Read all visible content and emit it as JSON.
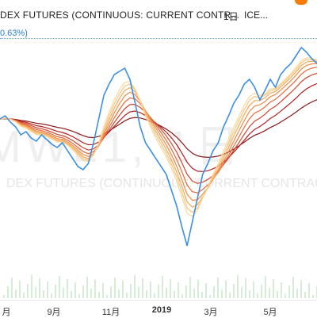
{
  "header": {
    "symbol": "DEX FUTURES (CONTINUOUS: CURRENT CONTR...",
    "separator": "·",
    "interval": "1日",
    "exchange": "ICE...",
    "change_pct": "0.63%)",
    "marker_color": "#f57c00"
  },
  "watermark": {
    "main": "MWL1, 1日",
    "sub": "DEX FUTURES (CONTINUOUS: CURRENT CONTRACT IN F"
  },
  "xaxis": {
    "ticks": [
      "月",
      "9月",
      "11月",
      "2019",
      "3月",
      "5月"
    ]
  },
  "colors": {
    "price": "#3b8fe6",
    "ribbon": [
      "#8b1a1a",
      "#b22222",
      "#d2452e",
      "#e7683a",
      "#f08a45",
      "#f4a85a",
      "#f7c47a",
      "#f9d99c"
    ],
    "volume": "#9fd6a0"
  },
  "chart_data": {
    "type": "line",
    "series": [
      {
        "values": [
          60,
          62,
          58,
          55,
          50,
          52,
          48,
          46,
          50,
          47,
          44,
          42,
          45,
          40,
          35,
          30,
          28,
          32,
          45,
          60,
          75,
          82,
          88,
          90,
          92,
          85,
          70,
          55,
          45,
          40,
          35,
          30,
          25,
          15,
          5,
          -8,
          -20,
          -5,
          10,
          25,
          32,
          40,
          45,
          55,
          62,
          70,
          75,
          82,
          85,
          80,
          72,
          78,
          85,
          80,
          88,
          92,
          95,
          100,
          105,
          102,
          98,
          95
        ]
      }
    ]
  }
}
